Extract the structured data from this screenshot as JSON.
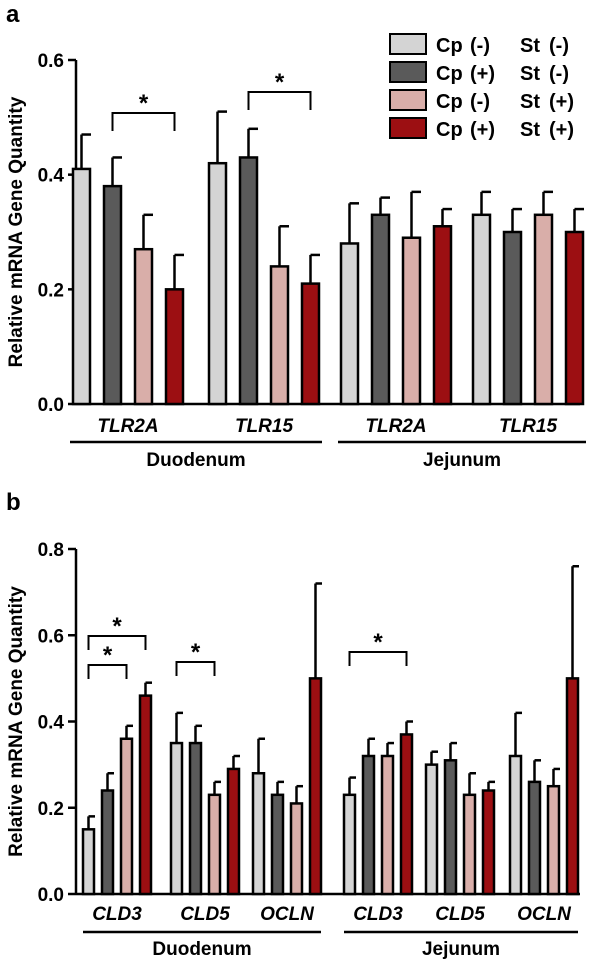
{
  "colors": {
    "g1": "#d4d4d4",
    "g2": "#5a5a5a",
    "g3": "#d9aea9",
    "g4": "#9c0f12"
  },
  "legend": {
    "entries": [
      {
        "cp": "Cp",
        "cp_sign": "(-)",
        "st": "St",
        "st_sign": "(-)",
        "color": "#d4d4d4"
      },
      {
        "cp": "Cp",
        "cp_sign": "(+)",
        "st": "St",
        "st_sign": "(-)",
        "color": "#5a5a5a"
      },
      {
        "cp": "Cp",
        "cp_sign": "(-)",
        "st": "St",
        "st_sign": "(+)",
        "color": "#d9aea9"
      },
      {
        "cp": "Cp",
        "cp_sign": "(+)",
        "st": "St",
        "st_sign": "(+)",
        "color": "#9c0f12"
      }
    ],
    "placement": "top-right"
  },
  "chart_data": [
    {
      "panel": "a",
      "type": "bar",
      "ylabel": "Relative mRNA Gene Quantity",
      "ylim": [
        0,
        0.6
      ],
      "yticks": [
        "0.0",
        "0.2",
        "0.4",
        "0.6"
      ],
      "categories": [
        "TLR2A",
        "TLR15",
        "TLR2A",
        "TLR15"
      ],
      "regions": [
        {
          "name": "Duodenum",
          "categories": [
            0,
            1
          ]
        },
        {
          "name": "Jejunum",
          "categories": [
            2,
            3
          ]
        }
      ],
      "series": [
        {
          "values": [
            0.41,
            0.42,
            0.28,
            0.33
          ],
          "errors": [
            0.06,
            0.09,
            0.07,
            0.04
          ]
        },
        {
          "values": [
            0.38,
            0.43,
            0.33,
            0.3
          ],
          "errors": [
            0.05,
            0.05,
            0.03,
            0.04
          ]
        },
        {
          "values": [
            0.27,
            0.24,
            0.29,
            0.33
          ],
          "errors": [
            0.06,
            0.07,
            0.08,
            0.04
          ]
        },
        {
          "values": [
            0.2,
            0.21,
            0.31,
            0.3
          ],
          "errors": [
            0.06,
            0.05,
            0.03,
            0.04
          ]
        }
      ],
      "significance": [
        {
          "category": 0,
          "from": 1,
          "to": 3,
          "label": "*"
        },
        {
          "category": 1,
          "from": 1,
          "to": 3,
          "label": "*"
        }
      ]
    },
    {
      "panel": "b",
      "type": "bar",
      "ylabel": "Relative mRNA Gene Quantity",
      "ylim": [
        0,
        0.8
      ],
      "yticks": [
        "0.0",
        "0.2",
        "0.4",
        "0.6",
        "0.8"
      ],
      "categories": [
        "CLD3",
        "CLD5",
        "OCLN",
        "CLD3",
        "CLD5",
        "OCLN"
      ],
      "regions": [
        {
          "name": "Duodenum",
          "categories": [
            0,
            1,
            2
          ]
        },
        {
          "name": "Jejunum",
          "categories": [
            3,
            4,
            5
          ]
        }
      ],
      "series": [
        {
          "values": [
            0.15,
            0.35,
            0.28,
            0.23,
            0.3,
            0.32
          ],
          "errors": [
            0.03,
            0.07,
            0.08,
            0.04,
            0.03,
            0.1
          ]
        },
        {
          "values": [
            0.24,
            0.35,
            0.23,
            0.32,
            0.31,
            0.26
          ],
          "errors": [
            0.04,
            0.04,
            0.03,
            0.04,
            0.04,
            0.05
          ]
        },
        {
          "values": [
            0.36,
            0.23,
            0.21,
            0.32,
            0.23,
            0.25
          ],
          "errors": [
            0.03,
            0.03,
            0.04,
            0.03,
            0.05,
            0.04
          ]
        },
        {
          "values": [
            0.46,
            0.29,
            0.5,
            0.37,
            0.24,
            0.5
          ],
          "errors": [
            0.03,
            0.03,
            0.22,
            0.03,
            0.02,
            0.26
          ]
        }
      ],
      "significance": [
        {
          "category": 0,
          "from": 0,
          "to": 3,
          "label": "*"
        },
        {
          "category": 0,
          "from": 0,
          "to": 2,
          "label": "*"
        },
        {
          "category": 1,
          "from": 0,
          "to": 2,
          "label": "*"
        },
        {
          "category": 3,
          "from": 0,
          "to": 3,
          "label": "*"
        }
      ]
    }
  ]
}
